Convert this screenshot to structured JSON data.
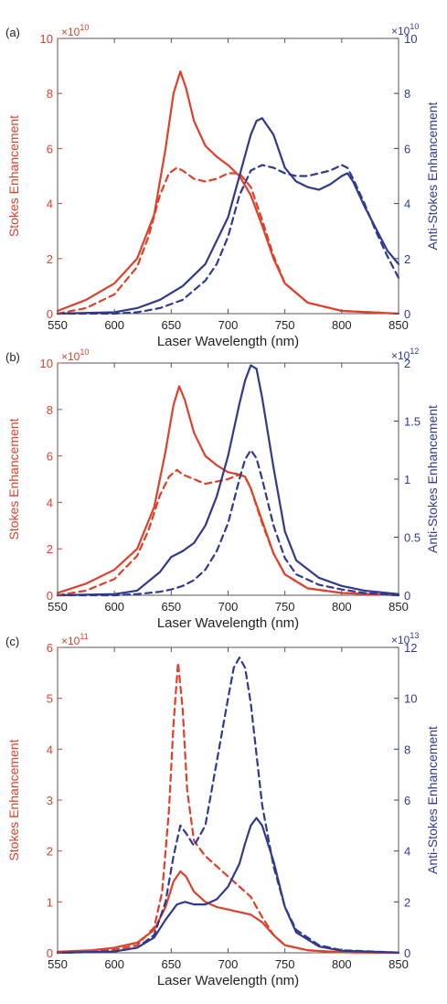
{
  "colors": {
    "stokes": "#e0402a",
    "antistokes": "#2f3a8f",
    "axis": "#555555",
    "text": "#222222"
  },
  "chart_data": [
    {
      "type": "line",
      "panel_label": "(a)",
      "xlabel": "Laser Wavelength (nm)",
      "ylabel_left": "Stokes Enhancement",
      "ylabel_right": "Anti-Stokes Enhancement",
      "xlim": [
        550,
        850
      ],
      "ylim_left": [
        0,
        10
      ],
      "ylim_right": [
        0,
        10
      ],
      "left_multiplier": "×10",
      "left_exponent": "10",
      "right_multiplier": "×10",
      "right_exponent": "10",
      "x_ticks": [
        "550",
        "600",
        "650",
        "700",
        "750",
        "800",
        "850"
      ],
      "x_tick_values": [
        550,
        600,
        650,
        700,
        750,
        800,
        850
      ],
      "left_ticks": [
        "0",
        "2",
        "4",
        "6",
        "8",
        "10"
      ],
      "left_tick_values": [
        0,
        2,
        4,
        6,
        8,
        10
      ],
      "right_ticks": [
        "0",
        "2",
        "4",
        "6",
        "8",
        "10"
      ],
      "right_tick_values": [
        0,
        2,
        4,
        6,
        8,
        10
      ],
      "series": [
        {
          "axis": "left",
          "color": "stokes",
          "style": "solid",
          "x": [
            550,
            575,
            600,
            620,
            635,
            645,
            652,
            658,
            663,
            670,
            680,
            690,
            700,
            710,
            720,
            730,
            740,
            750,
            770,
            800,
            850
          ],
          "y": [
            0.1,
            0.5,
            1.1,
            2.0,
            3.6,
            6.0,
            8.0,
            8.8,
            8.2,
            7.0,
            6.1,
            5.7,
            5.4,
            5.0,
            4.3,
            3.2,
            2.0,
            1.1,
            0.4,
            0.1,
            0
          ]
        },
        {
          "axis": "left",
          "color": "stokes",
          "style": "dashed",
          "x": [
            550,
            575,
            600,
            620,
            630,
            640,
            648,
            655,
            660,
            670,
            680,
            690,
            700,
            710,
            720,
            730,
            740,
            750,
            770,
            800,
            850
          ],
          "y": [
            0,
            0.2,
            0.7,
            1.7,
            2.8,
            4.3,
            5.1,
            5.3,
            5.2,
            4.9,
            4.8,
            4.9,
            5.1,
            5.1,
            4.6,
            3.4,
            2.1,
            1.1,
            0.4,
            0.1,
            0
          ]
        },
        {
          "axis": "right",
          "color": "antistokes",
          "style": "solid",
          "x": [
            550,
            600,
            620,
            640,
            660,
            680,
            700,
            710,
            720,
            725,
            730,
            740,
            750,
            760,
            770,
            780,
            790,
            800,
            805,
            810,
            820,
            830,
            840,
            850
          ],
          "y": [
            0,
            0.05,
            0.2,
            0.5,
            1.0,
            1.8,
            3.5,
            5.0,
            6.5,
            7.0,
            7.1,
            6.5,
            5.3,
            4.8,
            4.6,
            4.5,
            4.7,
            5.0,
            5.1,
            4.8,
            3.9,
            3.1,
            2.3,
            1.8
          ]
        },
        {
          "axis": "right",
          "color": "antistokes",
          "style": "dashed",
          "x": [
            550,
            600,
            620,
            640,
            660,
            680,
            690,
            700,
            710,
            720,
            730,
            740,
            750,
            760,
            770,
            780,
            790,
            800,
            805,
            810,
            820,
            830,
            840,
            850
          ],
          "y": [
            0,
            0,
            0.05,
            0.2,
            0.5,
            1.2,
            1.8,
            2.8,
            4.3,
            5.2,
            5.4,
            5.3,
            5.1,
            5.0,
            5.0,
            5.1,
            5.2,
            5.4,
            5.3,
            4.9,
            4.0,
            3.0,
            2.1,
            1.3
          ]
        }
      ]
    },
    {
      "type": "line",
      "panel_label": "(b)",
      "xlabel": "Laser Wavelength (nm)",
      "ylabel_left": "Stokes Enhancement",
      "ylabel_right": "Anti-Stokes Enhancement",
      "xlim": [
        550,
        850
      ],
      "ylim_left": [
        0,
        10
      ],
      "ylim_right": [
        0,
        2
      ],
      "left_multiplier": "×10",
      "left_exponent": "10",
      "right_multiplier": "×10",
      "right_exponent": "12",
      "x_ticks": [
        "550",
        "600",
        "650",
        "700",
        "750",
        "800",
        "850"
      ],
      "x_tick_values": [
        550,
        600,
        650,
        700,
        750,
        800,
        850
      ],
      "left_ticks": [
        "0",
        "2",
        "4",
        "6",
        "8",
        "10"
      ],
      "left_tick_values": [
        0,
        2,
        4,
        6,
        8,
        10
      ],
      "right_ticks": [
        "0",
        "0.5",
        "1",
        "1.5",
        "2"
      ],
      "right_tick_values": [
        0,
        0.5,
        1,
        1.5,
        2
      ],
      "series": [
        {
          "axis": "left",
          "color": "stokes",
          "style": "solid",
          "x": [
            550,
            575,
            600,
            620,
            635,
            645,
            652,
            657,
            662,
            670,
            680,
            690,
            700,
            710,
            715,
            720,
            730,
            740,
            750,
            770,
            800,
            850
          ],
          "y": [
            0.1,
            0.5,
            1.1,
            2.0,
            3.8,
            6.2,
            8.2,
            9.0,
            8.4,
            7.0,
            6.0,
            5.6,
            5.3,
            5.2,
            5.1,
            4.6,
            3.2,
            1.8,
            0.9,
            0.3,
            0.1,
            0
          ]
        },
        {
          "axis": "left",
          "color": "stokes",
          "style": "dashed",
          "x": [
            550,
            575,
            600,
            620,
            630,
            640,
            648,
            655,
            660,
            670,
            680,
            690,
            700,
            710,
            715,
            720,
            730,
            740,
            750,
            770,
            800,
            850
          ],
          "y": [
            0,
            0.2,
            0.7,
            1.7,
            2.8,
            4.3,
            5.1,
            5.4,
            5.2,
            5.0,
            4.8,
            4.9,
            5.0,
            5.2,
            5.1,
            4.6,
            3.1,
            1.8,
            0.9,
            0.3,
            0.1,
            0
          ]
        },
        {
          "axis": "right",
          "color": "antistokes",
          "style": "solid",
          "x": [
            550,
            600,
            620,
            640,
            650,
            660,
            670,
            680,
            690,
            700,
            710,
            715,
            720,
            725,
            730,
            740,
            750,
            760,
            780,
            800,
            820,
            850
          ],
          "y": [
            0,
            0.01,
            0.04,
            0.2,
            0.33,
            0.38,
            0.45,
            0.6,
            0.85,
            1.2,
            1.65,
            1.85,
            1.98,
            1.95,
            1.7,
            1.1,
            0.55,
            0.3,
            0.15,
            0.08,
            0.04,
            0.01
          ]
        },
        {
          "axis": "right",
          "color": "antistokes",
          "style": "dashed",
          "x": [
            550,
            600,
            620,
            640,
            650,
            660,
            670,
            680,
            690,
            700,
            710,
            715,
            720,
            725,
            730,
            740,
            750,
            760,
            780,
            800,
            820,
            850
          ],
          "y": [
            0,
            0,
            0.01,
            0.03,
            0.05,
            0.08,
            0.13,
            0.22,
            0.38,
            0.62,
            1.0,
            1.17,
            1.25,
            1.18,
            1.0,
            0.6,
            0.32,
            0.18,
            0.09,
            0.05,
            0.02,
            0
          ]
        }
      ]
    },
    {
      "type": "line",
      "panel_label": "(c)",
      "xlabel": "Laser Wavelength (nm)",
      "ylabel_left": "Stokes Enhancement",
      "ylabel_right": "Anti-Stokes Enhancement",
      "xlim": [
        550,
        850
      ],
      "ylim_left": [
        0,
        6
      ],
      "ylim_right": [
        0,
        12
      ],
      "left_multiplier": "×10",
      "left_exponent": "11",
      "right_multiplier": "×10",
      "right_exponent": "13",
      "x_ticks": [
        "550",
        "600",
        "650",
        "700",
        "750",
        "800",
        "850"
      ],
      "x_tick_values": [
        550,
        600,
        650,
        700,
        750,
        800,
        850
      ],
      "left_ticks": [
        "0",
        "1",
        "2",
        "3",
        "4",
        "5",
        "6"
      ],
      "left_tick_values": [
        0,
        1,
        2,
        3,
        4,
        5,
        6
      ],
      "right_ticks": [
        "0",
        "2",
        "4",
        "6",
        "8",
        "10",
        "12"
      ],
      "right_tick_values": [
        0,
        2,
        4,
        6,
        8,
        10,
        12
      ],
      "series": [
        {
          "axis": "left",
          "color": "stokes",
          "style": "solid",
          "x": [
            550,
            580,
            600,
            620,
            635,
            645,
            652,
            658,
            663,
            670,
            680,
            690,
            700,
            710,
            720,
            730,
            740,
            750,
            770,
            800,
            850
          ],
          "y": [
            0.02,
            0.05,
            0.1,
            0.2,
            0.45,
            0.9,
            1.4,
            1.6,
            1.5,
            1.2,
            1.0,
            0.9,
            0.85,
            0.8,
            0.75,
            0.6,
            0.35,
            0.15,
            0.05,
            0.01,
            0
          ]
        },
        {
          "axis": "left",
          "color": "stokes",
          "style": "dashed",
          "x": [
            550,
            580,
            600,
            620,
            635,
            642,
            648,
            652,
            656,
            660,
            664,
            670,
            680,
            690,
            700,
            710,
            720,
            730,
            740,
            750,
            770,
            800,
            850
          ],
          "y": [
            0.01,
            0.03,
            0.06,
            0.15,
            0.5,
            1.2,
            2.8,
            4.5,
            5.7,
            4.8,
            3.2,
            2.2,
            1.9,
            1.7,
            1.5,
            1.3,
            1.1,
            0.7,
            0.35,
            0.15,
            0.05,
            0.01,
            0
          ]
        },
        {
          "axis": "right",
          "color": "antistokes",
          "style": "solid",
          "x": [
            550,
            600,
            620,
            635,
            645,
            655,
            662,
            670,
            680,
            690,
            700,
            710,
            715,
            720,
            725,
            730,
            740,
            750,
            760,
            780,
            800,
            850
          ],
          "y": [
            0,
            0.05,
            0.2,
            0.6,
            1.3,
            1.9,
            2.0,
            1.9,
            1.9,
            2.1,
            2.6,
            3.5,
            4.3,
            5.0,
            5.3,
            5.0,
            3.6,
            1.8,
            0.8,
            0.25,
            0.08,
            0.01
          ]
        },
        {
          "axis": "right",
          "color": "antistokes",
          "style": "dashed",
          "x": [
            550,
            600,
            620,
            635,
            645,
            652,
            658,
            663,
            670,
            680,
            690,
            700,
            705,
            710,
            715,
            720,
            725,
            730,
            740,
            750,
            760,
            780,
            800,
            850
          ],
          "y": [
            0,
            0.05,
            0.2,
            0.7,
            2.0,
            3.8,
            5.0,
            4.7,
            4.2,
            5.0,
            7.5,
            10.0,
            11.2,
            11.6,
            11.2,
            9.8,
            7.8,
            5.8,
            3.4,
            1.8,
            0.9,
            0.3,
            0.1,
            0.01
          ]
        }
      ]
    }
  ]
}
